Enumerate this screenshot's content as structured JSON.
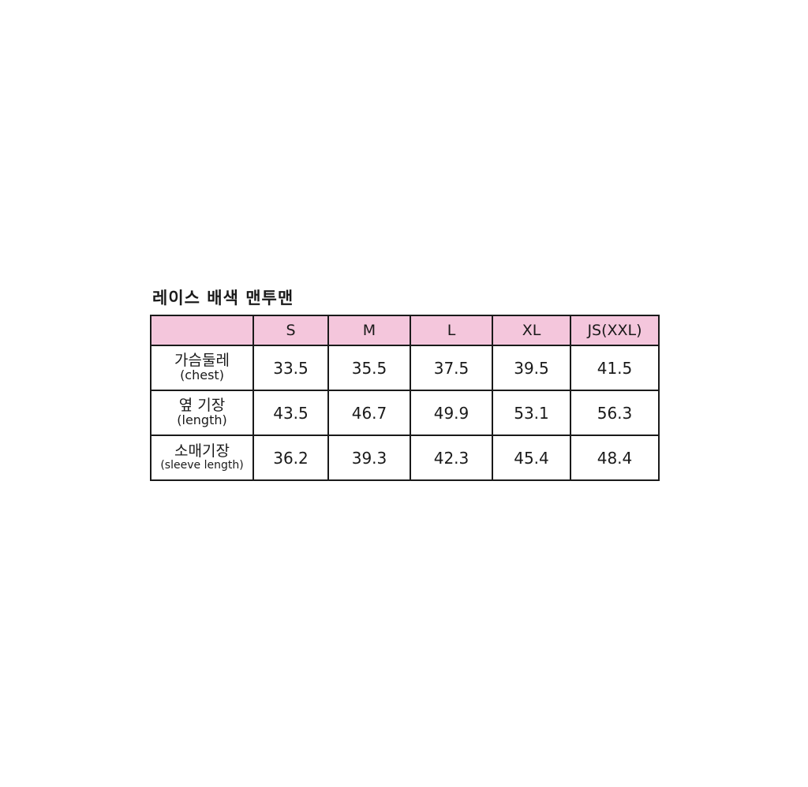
{
  "title": "레이스 배색 맨투맨",
  "table": {
    "colors": {
      "header_bg": "#f4c6dc",
      "border": "#1a1a1a"
    },
    "headers": [
      "",
      "S",
      "M",
      "L",
      "XL",
      "JS(XXL)"
    ],
    "rows": [
      {
        "label_ko": "가슴둘레",
        "label_en": "(chest)",
        "values": [
          "33.5",
          "35.5",
          "37.5",
          "39.5",
          "41.5"
        ]
      },
      {
        "label_ko": "옆 기장",
        "label_en": "(length)",
        "values": [
          "43.5",
          "46.7",
          "49.9",
          "53.1",
          "56.3"
        ]
      },
      {
        "label_ko": "소매기장",
        "label_en": "(sleeve length)",
        "values": [
          "36.2",
          "39.3",
          "42.3",
          "45.4",
          "48.4"
        ]
      }
    ]
  }
}
